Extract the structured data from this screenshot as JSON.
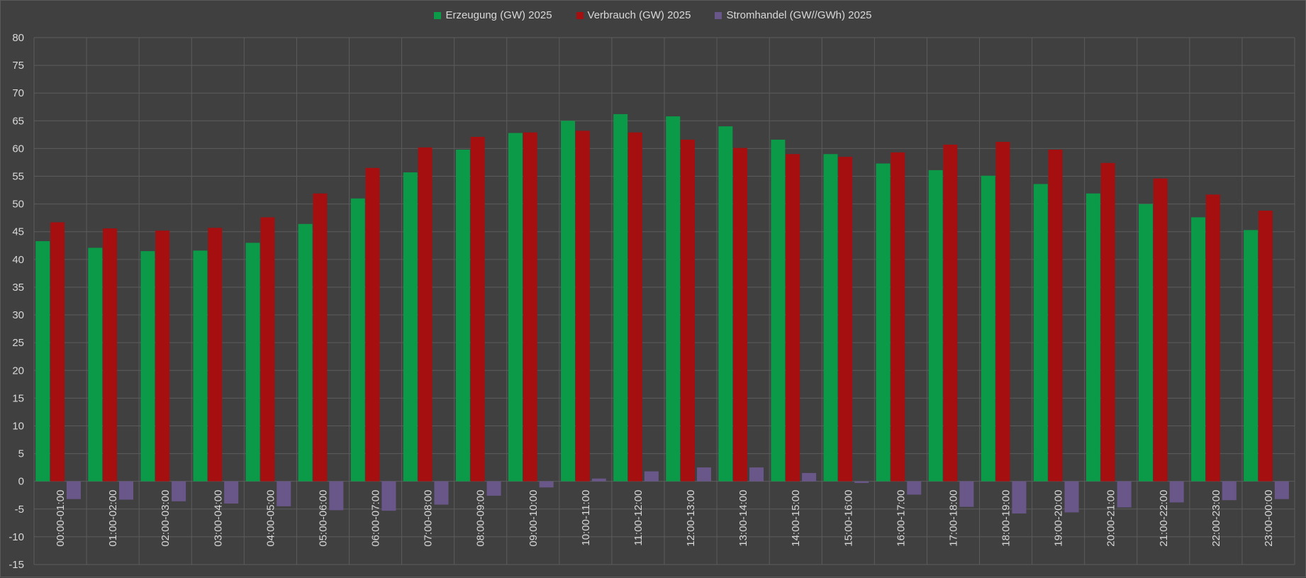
{
  "chart_data": {
    "type": "bar",
    "ylim": [
      -15,
      80
    ],
    "yticks": [
      80,
      75,
      70,
      65,
      60,
      55,
      50,
      45,
      40,
      35,
      30,
      25,
      20,
      15,
      10,
      5,
      0,
      -5,
      -10,
      -15
    ],
    "grid": true,
    "legend_position": "top-center",
    "categories": [
      "00:00-01:00",
      "01:00-02:00",
      "02:00-03:00",
      "03:00-04:00",
      "04:00-05:00",
      "05:00-06:00",
      "06:00-07:00",
      "07:00-08:00",
      "08:00-09:00",
      "09:00-10:00",
      "10:00-11:00",
      "11:00-12:00",
      "12:00-13:00",
      "13:00-14:00",
      "14:00-15:00",
      "15:00-16:00",
      "16:00-17:00",
      "17:00-18:00",
      "18:00-19:00",
      "19:00-20:00",
      "20:00-21:00",
      "21:00-22:00",
      "22:00-23:00",
      "23:00-00:00"
    ],
    "series": [
      {
        "name": "Erzeugung (GW) 2025",
        "color": "#0a9a48",
        "values": [
          43.3,
          42.1,
          41.5,
          41.6,
          43.0,
          46.4,
          51.0,
          55.7,
          59.8,
          62.8,
          65.0,
          66.2,
          65.8,
          64.0,
          61.6,
          59.0,
          57.3,
          56.1,
          55.1,
          53.6,
          51.9,
          50.0,
          47.6,
          45.3
        ]
      },
      {
        "name": "Verbrauch (GW) 2025",
        "color": "#a50f10",
        "values": [
          46.7,
          45.6,
          45.2,
          45.7,
          47.6,
          51.9,
          56.5,
          60.2,
          62.1,
          62.9,
          63.2,
          62.9,
          61.6,
          60.1,
          59.0,
          58.5,
          59.3,
          60.7,
          61.2,
          59.8,
          57.4,
          54.6,
          51.7,
          48.8
        ]
      },
      {
        "name": "Stromhandel (GW//GWh) 2025",
        "color": "#6a5789",
        "values": [
          -3.2,
          -3.3,
          -3.6,
          -4.0,
          -4.5,
          -5.2,
          -5.3,
          -4.2,
          -2.6,
          -1.1,
          0.5,
          1.8,
          2.5,
          2.5,
          1.5,
          -0.3,
          -2.4,
          -4.6,
          -5.8,
          -5.6,
          -4.7,
          -3.8,
          -3.4,
          -3.2
        ]
      }
    ]
  }
}
